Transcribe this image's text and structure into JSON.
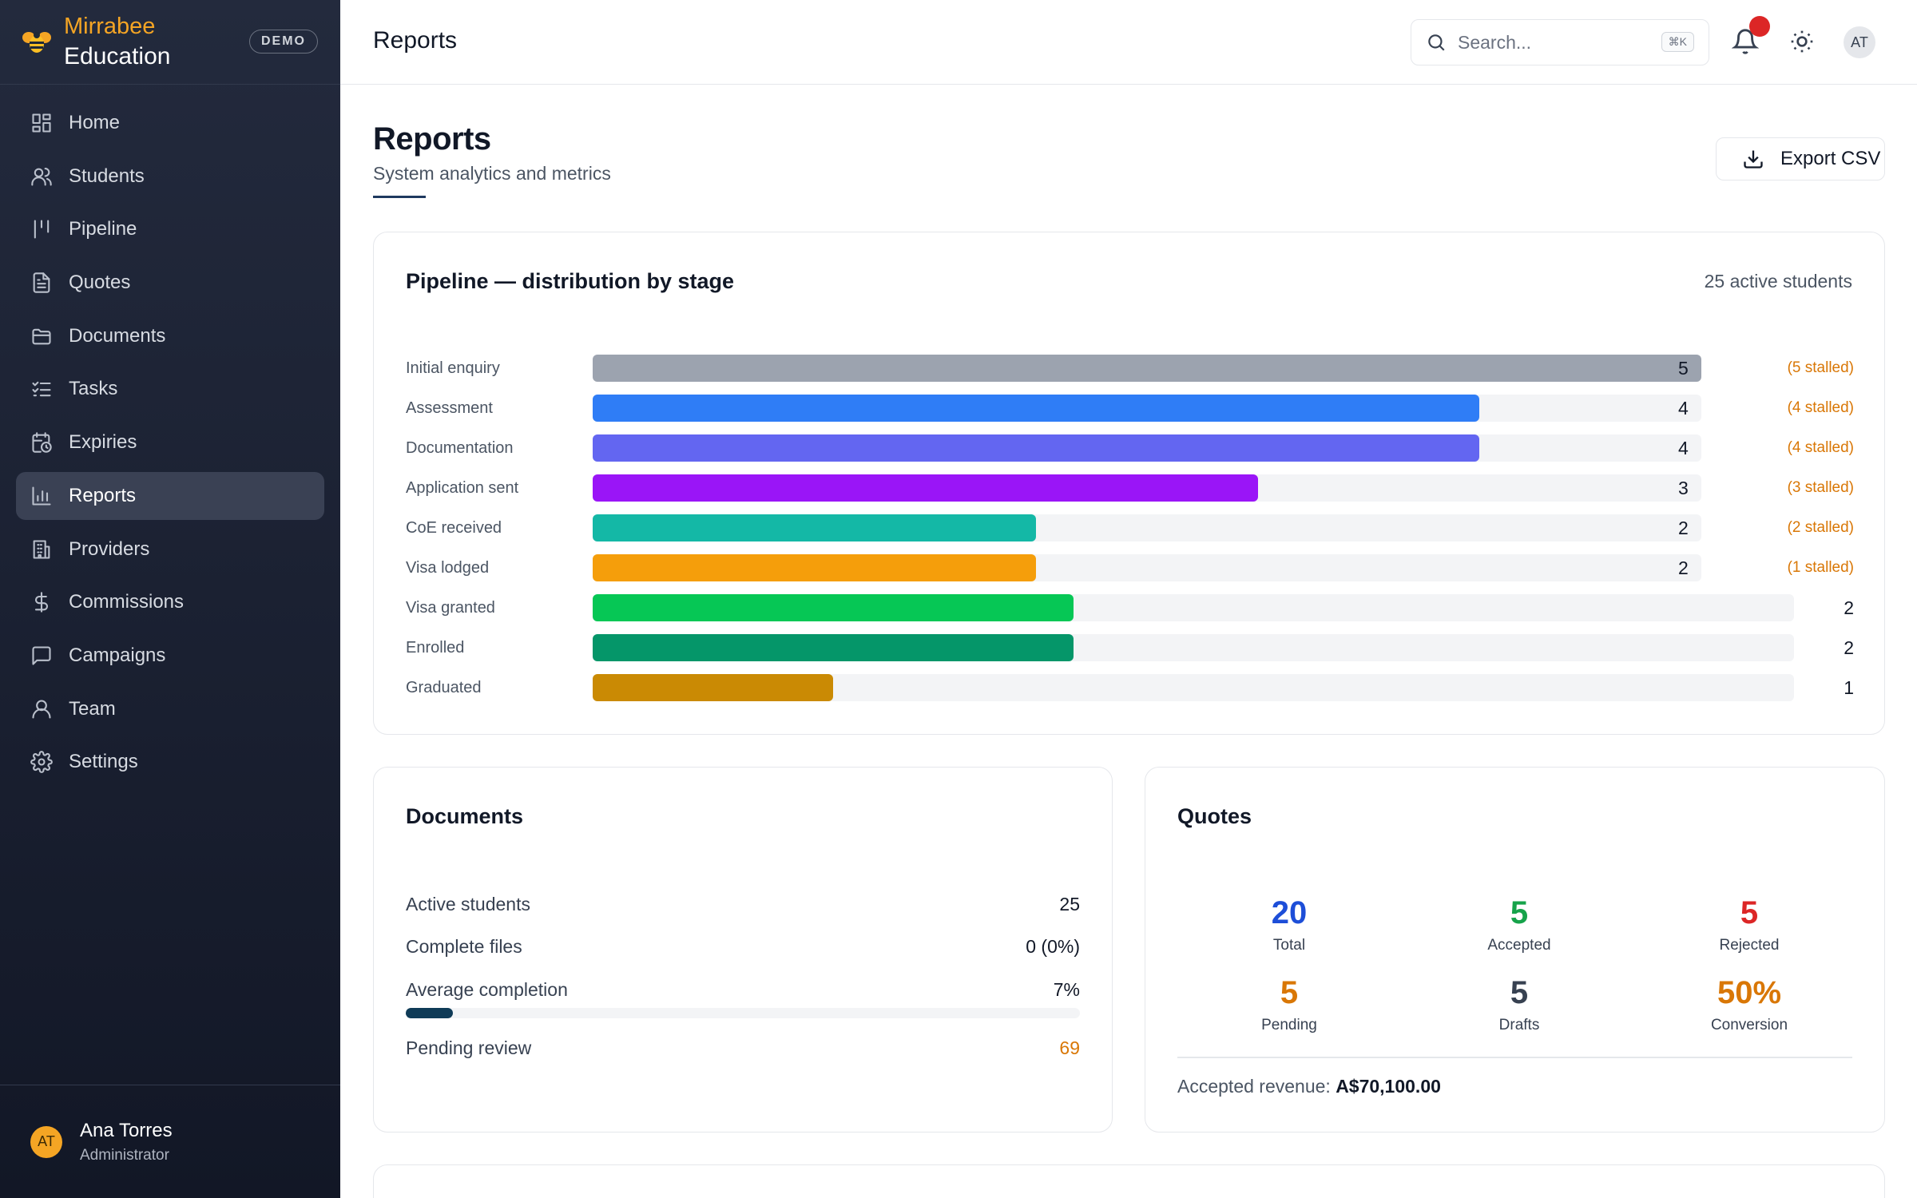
{
  "brand": {
    "name_top": "Mirrabee",
    "name_bottom": "Education",
    "badge": "DEMO"
  },
  "sidebar": {
    "items": [
      {
        "label": "Home",
        "icon": "grid-icon"
      },
      {
        "label": "Students",
        "icon": "users-icon"
      },
      {
        "label": "Pipeline",
        "icon": "pipeline-icon"
      },
      {
        "label": "Quotes",
        "icon": "file-text-icon"
      },
      {
        "label": "Documents",
        "icon": "folder-icon"
      },
      {
        "label": "Tasks",
        "icon": "list-checks-icon"
      },
      {
        "label": "Expiries",
        "icon": "calendar-clock-icon"
      },
      {
        "label": "Reports",
        "icon": "bar-chart-icon",
        "active": true
      },
      {
        "label": "Providers",
        "icon": "building-icon"
      },
      {
        "label": "Commissions",
        "icon": "dollar-icon"
      },
      {
        "label": "Campaigns",
        "icon": "message-square-icon"
      },
      {
        "label": "Team",
        "icon": "user-icon"
      },
      {
        "label": "Settings",
        "icon": "gear-icon"
      }
    ]
  },
  "user": {
    "initials": "AT",
    "name": "Ana Torres",
    "role": "Administrator"
  },
  "topbar": {
    "title": "Reports",
    "search_placeholder": "Search...",
    "search_shortcut": "⌘K",
    "avatar_initials": "AT"
  },
  "page": {
    "heading": "Reports",
    "subtitle": "System analytics and metrics",
    "export_label": "Export CSV"
  },
  "pipeline": {
    "title": "Pipeline — distribution by stage",
    "meta": "25 active students",
    "stages": [
      {
        "label": "Initial enquiry",
        "count": "5",
        "stalled": "(5 stalled)",
        "fraction": 1.0,
        "color": "#9ca3af"
      },
      {
        "label": "Assessment",
        "count": "4",
        "stalled": "(4 stalled)",
        "fraction": 0.8,
        "color": "#2f7df6"
      },
      {
        "label": "Documentation",
        "count": "4",
        "stalled": "(4 stalled)",
        "fraction": 0.8,
        "color": "#6366f1"
      },
      {
        "label": "Application sent",
        "count": "3",
        "stalled": "(3 stalled)",
        "fraction": 0.6,
        "color": "#9a15f7"
      },
      {
        "label": "CoE received",
        "count": "2",
        "stalled": "(2 stalled)",
        "fraction": 0.4,
        "color": "#14b8a6"
      },
      {
        "label": "Visa lodged",
        "count": "2",
        "stalled": "(1 stalled)",
        "fraction": 0.4,
        "color": "#f59e0b"
      },
      {
        "label": "Visa granted",
        "count": "2",
        "stalled": "",
        "fraction": 0.4,
        "color": "#06c755"
      },
      {
        "label": "Enrolled",
        "count": "2",
        "stalled": "",
        "fraction": 0.4,
        "color": "#059669"
      },
      {
        "label": "Graduated",
        "count": "1",
        "stalled": "",
        "fraction": 0.2,
        "color": "#ca8a04"
      }
    ]
  },
  "documents": {
    "title": "Documents",
    "rows": [
      {
        "label": "Active students",
        "value": "25"
      },
      {
        "label": "Complete files",
        "value": "0 (0%)"
      },
      {
        "label": "Average completion",
        "value": "7%"
      },
      {
        "label": "Pending review",
        "value": "69"
      }
    ],
    "average_completion": 0.07
  },
  "quotes": {
    "title": "Quotes",
    "stats": [
      {
        "value": "20",
        "label": "Total",
        "color": "#1d4ed8"
      },
      {
        "value": "5",
        "label": "Accepted",
        "color": "#16a34a"
      },
      {
        "value": "5",
        "label": "Rejected",
        "color": "#dc2626"
      },
      {
        "value": "5",
        "label": "Pending",
        "color": "#d97706"
      },
      {
        "value": "5",
        "label": "Drafts",
        "color": "#374151"
      },
      {
        "value": "50%",
        "label": "Conversion",
        "color": "#d97706"
      }
    ],
    "revenue_label": "Accepted revenue:",
    "revenue_value": "A$70,100.00"
  }
}
